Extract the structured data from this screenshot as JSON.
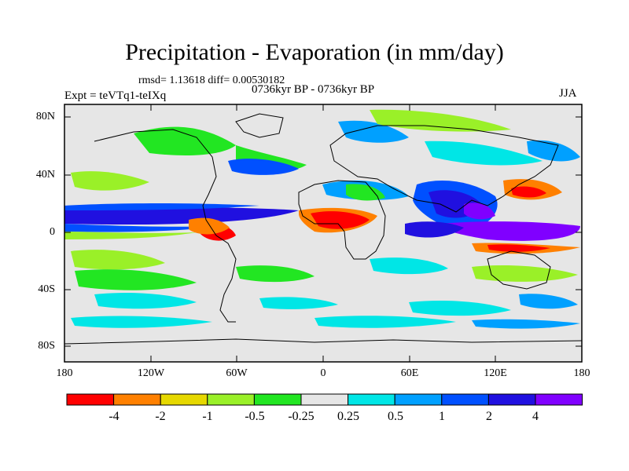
{
  "title": "Precipitation - Evaporation (in mm/day)",
  "stats": "rmsd= 1.13618 diff= 0.00530182",
  "period": "0736kyr BP - 0736kyr BP",
  "experiment": "Expt = teVTq1-teIXq",
  "season": "JJA",
  "y_axis_labels": [
    "80N",
    "40N",
    "0",
    "40S",
    "80S"
  ],
  "x_axis_labels": [
    "180",
    "120W",
    "60W",
    "0",
    "60E",
    "120E",
    "180"
  ],
  "colorbar": {
    "labels": [
      "-4",
      "-2",
      "-1",
      "-0.5",
      "-0.25",
      "0.25",
      "0.5",
      "1",
      "2",
      "4"
    ],
    "colors": [
      "#ff0000",
      "#ff8000",
      "#e6d800",
      "#9af028",
      "#22e622",
      "#e6e6e6",
      "#00e6e6",
      "#00a0ff",
      "#0050ff",
      "#2010e0",
      "#8000ff"
    ]
  },
  "colors": {
    "background": "#e6e6e6",
    "coast": "#000000"
  }
}
